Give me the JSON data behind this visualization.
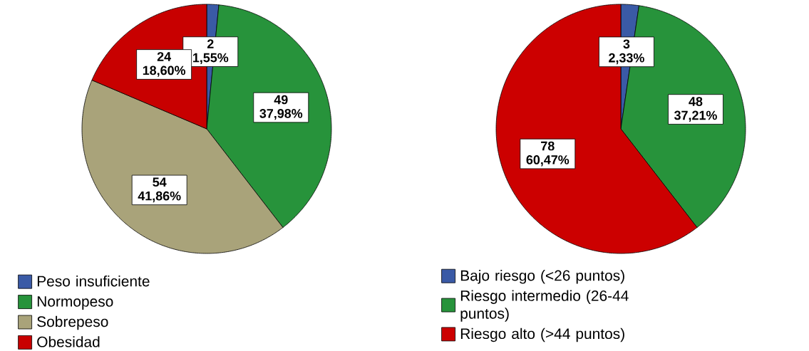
{
  "chart_data": [
    {
      "type": "pie",
      "categories": [
        "Peso insuficiente",
        "Normopeso",
        "Sobrepeso",
        "Obesidad"
      ],
      "values": [
        2,
        49,
        54,
        24
      ],
      "colors": [
        "#3a5aa6",
        "#27933b",
        "#a9a37a",
        "#c80000"
      ],
      "value_labels": [
        "2 1,55%",
        "49 37,98%",
        "54 41,86%",
        "24 18,60%"
      ],
      "legend": "bottom"
    },
    {
      "type": "pie",
      "categories": [
        "Bajo riesgo (<26 puntos)",
        "Riesgo intermedio (26-44 puntos)",
        "Riesgo alto (>44 puntos)"
      ],
      "values": [
        3,
        48,
        78
      ],
      "colors": [
        "#3a5aa6",
        "#27933b",
        "#cc0000"
      ],
      "value_labels": [
        "3 2,33%",
        "48 37,21%",
        "78 60,47%"
      ],
      "legend": "bottom"
    }
  ]
}
